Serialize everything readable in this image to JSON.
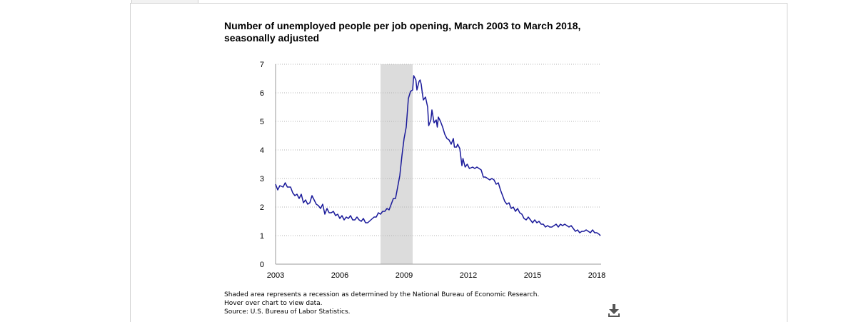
{
  "chart_data": {
    "type": "line",
    "title": "Number of unemployed people per job opening, March 2003 to March 2018,",
    "subtitle": "seasonally adjusted",
    "xlabel": "",
    "ylabel": "",
    "xlim": [
      2003,
      2018.2
    ],
    "ylim": [
      0,
      7
    ],
    "x_ticks": [
      "2003",
      "2006",
      "2009",
      "2012",
      "2015",
      "2018"
    ],
    "y_ticks": [
      "0",
      "1",
      "2",
      "3",
      "4",
      "5",
      "6",
      "7"
    ],
    "grid": true,
    "recession": {
      "start": 2007.9,
      "end": 2009.4
    },
    "series": [
      {
        "color": "#1a1a9a",
        "points": [
          [
            2003.0,
            2.8
          ],
          [
            2003.1,
            2.6
          ],
          [
            2003.2,
            2.75
          ],
          [
            2003.35,
            2.7
          ],
          [
            2003.45,
            2.85
          ],
          [
            2003.55,
            2.7
          ],
          [
            2003.7,
            2.7
          ],
          [
            2003.8,
            2.5
          ],
          [
            2003.9,
            2.4
          ],
          [
            2004.0,
            2.45
          ],
          [
            2004.1,
            2.3
          ],
          [
            2004.2,
            2.45
          ],
          [
            2004.3,
            2.15
          ],
          [
            2004.4,
            2.25
          ],
          [
            2004.5,
            2.1
          ],
          [
            2004.6,
            2.15
          ],
          [
            2004.7,
            2.4
          ],
          [
            2004.8,
            2.25
          ],
          [
            2004.9,
            2.1
          ],
          [
            2005.0,
            2.05
          ],
          [
            2005.1,
            1.95
          ],
          [
            2005.2,
            2.1
          ],
          [
            2005.3,
            1.75
          ],
          [
            2005.4,
            1.95
          ],
          [
            2005.5,
            1.8
          ],
          [
            2005.6,
            1.8
          ],
          [
            2005.7,
            1.85
          ],
          [
            2005.8,
            1.7
          ],
          [
            2005.9,
            1.75
          ],
          [
            2006.0,
            1.6
          ],
          [
            2006.1,
            1.7
          ],
          [
            2006.2,
            1.55
          ],
          [
            2006.3,
            1.65
          ],
          [
            2006.4,
            1.6
          ],
          [
            2006.5,
            1.7
          ],
          [
            2006.6,
            1.55
          ],
          [
            2006.7,
            1.55
          ],
          [
            2006.8,
            1.65
          ],
          [
            2006.9,
            1.55
          ],
          [
            2007.0,
            1.5
          ],
          [
            2007.1,
            1.6
          ],
          [
            2007.2,
            1.45
          ],
          [
            2007.3,
            1.45
          ],
          [
            2007.45,
            1.55
          ],
          [
            2007.6,
            1.65
          ],
          [
            2007.7,
            1.65
          ],
          [
            2007.8,
            1.8
          ],
          [
            2007.9,
            1.75
          ],
          [
            2008.0,
            1.85
          ],
          [
            2008.1,
            1.85
          ],
          [
            2008.2,
            1.95
          ],
          [
            2008.3,
            1.9
          ],
          [
            2008.4,
            2.1
          ],
          [
            2008.5,
            2.3
          ],
          [
            2008.6,
            2.3
          ],
          [
            2008.7,
            2.7
          ],
          [
            2008.8,
            3.1
          ],
          [
            2008.9,
            3.8
          ],
          [
            2009.0,
            4.4
          ],
          [
            2009.1,
            4.8
          ],
          [
            2009.2,
            5.8
          ],
          [
            2009.3,
            6.05
          ],
          [
            2009.4,
            6.1
          ],
          [
            2009.45,
            6.6
          ],
          [
            2009.55,
            6.45
          ],
          [
            2009.6,
            6.1
          ],
          [
            2009.7,
            6.4
          ],
          [
            2009.75,
            6.45
          ],
          [
            2009.8,
            6.3
          ],
          [
            2009.85,
            6.0
          ],
          [
            2009.9,
            5.75
          ],
          [
            2010.0,
            5.85
          ],
          [
            2010.1,
            5.5
          ],
          [
            2010.15,
            4.85
          ],
          [
            2010.25,
            5.05
          ],
          [
            2010.3,
            5.4
          ],
          [
            2010.4,
            4.95
          ],
          [
            2010.5,
            5.05
          ],
          [
            2010.55,
            4.8
          ],
          [
            2010.6,
            5.15
          ],
          [
            2010.7,
            5.0
          ],
          [
            2010.8,
            4.8
          ],
          [
            2010.9,
            4.55
          ],
          [
            2011.0,
            4.4
          ],
          [
            2011.1,
            4.35
          ],
          [
            2011.2,
            4.2
          ],
          [
            2011.3,
            4.4
          ],
          [
            2011.35,
            4.1
          ],
          [
            2011.45,
            4.1
          ],
          [
            2011.5,
            4.2
          ],
          [
            2011.6,
            4.05
          ],
          [
            2011.7,
            3.45
          ],
          [
            2011.75,
            3.7
          ],
          [
            2011.85,
            3.4
          ],
          [
            2011.95,
            3.5
          ],
          [
            2012.05,
            3.35
          ],
          [
            2012.2,
            3.4
          ],
          [
            2012.3,
            3.35
          ],
          [
            2012.4,
            3.4
          ],
          [
            2012.5,
            3.35
          ],
          [
            2012.6,
            3.3
          ],
          [
            2012.7,
            3.05
          ],
          [
            2012.8,
            3.05
          ],
          [
            2012.9,
            3.0
          ],
          [
            2013.0,
            2.95
          ],
          [
            2013.1,
            3.0
          ],
          [
            2013.2,
            2.95
          ],
          [
            2013.3,
            2.8
          ],
          [
            2013.4,
            2.85
          ],
          [
            2013.5,
            2.6
          ],
          [
            2013.6,
            2.4
          ],
          [
            2013.7,
            2.2
          ],
          [
            2013.8,
            2.1
          ],
          [
            2013.9,
            2.15
          ],
          [
            2014.0,
            1.95
          ],
          [
            2014.1,
            2.0
          ],
          [
            2014.2,
            1.85
          ],
          [
            2014.3,
            1.95
          ],
          [
            2014.4,
            1.8
          ],
          [
            2014.5,
            1.75
          ],
          [
            2014.6,
            1.6
          ],
          [
            2014.7,
            1.55
          ],
          [
            2014.8,
            1.65
          ],
          [
            2014.9,
            1.55
          ],
          [
            2015.0,
            1.45
          ],
          [
            2015.1,
            1.55
          ],
          [
            2015.2,
            1.45
          ],
          [
            2015.3,
            1.5
          ],
          [
            2015.4,
            1.4
          ],
          [
            2015.5,
            1.4
          ],
          [
            2015.6,
            1.3
          ],
          [
            2015.7,
            1.35
          ],
          [
            2015.8,
            1.3
          ],
          [
            2015.9,
            1.3
          ],
          [
            2016.0,
            1.35
          ],
          [
            2016.1,
            1.4
          ],
          [
            2016.2,
            1.3
          ],
          [
            2016.3,
            1.4
          ],
          [
            2016.4,
            1.35
          ],
          [
            2016.5,
            1.4
          ],
          [
            2016.6,
            1.35
          ],
          [
            2016.7,
            1.3
          ],
          [
            2016.8,
            1.35
          ],
          [
            2016.9,
            1.25
          ],
          [
            2017.0,
            1.15
          ],
          [
            2017.1,
            1.2
          ],
          [
            2017.2,
            1.1
          ],
          [
            2017.3,
            1.15
          ],
          [
            2017.4,
            1.15
          ],
          [
            2017.5,
            1.2
          ],
          [
            2017.6,
            1.15
          ],
          [
            2017.7,
            1.1
          ],
          [
            2017.8,
            1.2
          ],
          [
            2017.9,
            1.1
          ],
          [
            2018.0,
            1.1
          ],
          [
            2018.1,
            1.05
          ],
          [
            2018.17,
            1.0
          ]
        ]
      }
    ]
  },
  "notes": {
    "line1": "Shaded area represents a recession as determined by the National Bureau of Economic Research.",
    "line2": "Hover over chart to view data.",
    "line3": "Source: U.S. Bureau of Labor Statistics."
  },
  "download": {
    "icon": "download-icon"
  }
}
